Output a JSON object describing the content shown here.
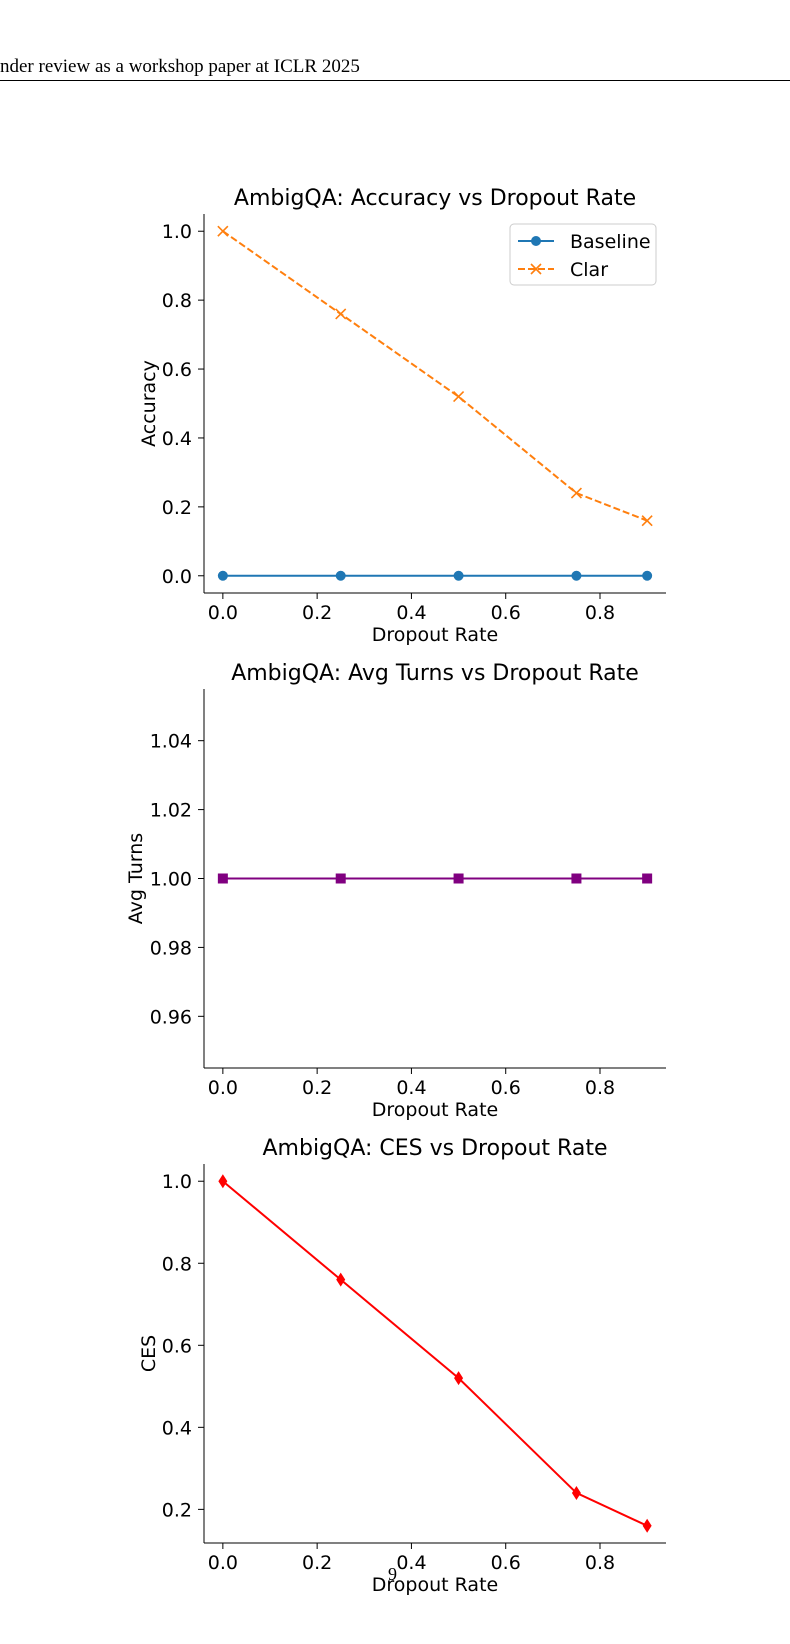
{
  "header": {
    "text": "nder review as a workshop paper at ICLR 2025"
  },
  "page_number": "9",
  "chart_data": [
    {
      "type": "line",
      "title": "AmbigQA: Accuracy vs Dropout Rate",
      "xlabel": "Dropout Rate",
      "ylabel": "Accuracy",
      "xlim": [
        -0.04,
        0.94
      ],
      "ylim": [
        -0.05,
        1.05
      ],
      "xticks": [
        0.0,
        0.2,
        0.4,
        0.6,
        0.8
      ],
      "xtick_labels": [
        "0.0",
        "0.2",
        "0.4",
        "0.6",
        "0.8"
      ],
      "yticks": [
        0.0,
        0.2,
        0.4,
        0.6,
        0.8,
        1.0
      ],
      "ytick_labels": [
        "0.0",
        "0.2",
        "0.4",
        "0.6",
        "0.8",
        "1.0"
      ],
      "x": [
        0.0,
        0.25,
        0.5,
        0.75,
        0.9
      ],
      "series": [
        {
          "name": "Baseline",
          "values": [
            0.0,
            0.0,
            0.0,
            0.0,
            0.0
          ],
          "color": "#1f77b4",
          "marker": "circle",
          "dash": "solid"
        },
        {
          "name": "Clar",
          "values": [
            1.0,
            0.76,
            0.52,
            0.24,
            0.16
          ],
          "color": "#ff7f0e",
          "marker": "x",
          "dash": "dashed"
        }
      ],
      "legend": "top-right",
      "grid": false
    },
    {
      "type": "line",
      "title": "AmbigQA: Avg Turns vs Dropout Rate",
      "xlabel": "Dropout Rate",
      "ylabel": "Avg Turns",
      "xlim": [
        -0.04,
        0.94
      ],
      "ylim": [
        0.945,
        1.055
      ],
      "xticks": [
        0.0,
        0.2,
        0.4,
        0.6,
        0.8
      ],
      "xtick_labels": [
        "0.0",
        "0.2",
        "0.4",
        "0.6",
        "0.8"
      ],
      "yticks": [
        0.96,
        0.98,
        1.0,
        1.02,
        1.04
      ],
      "ytick_labels": [
        "0.96",
        "0.98",
        "1.00",
        "1.02",
        "1.04"
      ],
      "x": [
        0.0,
        0.25,
        0.5,
        0.75,
        0.9
      ],
      "series": [
        {
          "values": [
            1.0,
            1.0,
            1.0,
            1.0,
            1.0
          ],
          "color": "#800080",
          "marker": "square",
          "dash": "solid"
        }
      ],
      "legend": "none",
      "grid": false
    },
    {
      "type": "line",
      "title": "AmbigQA: CES vs Dropout Rate",
      "xlabel": "Dropout Rate",
      "ylabel": "CES",
      "xlim": [
        -0.04,
        0.94
      ],
      "ylim": [
        0.118,
        1.042
      ],
      "xticks": [
        0.0,
        0.2,
        0.4,
        0.6,
        0.8
      ],
      "xtick_labels": [
        "0.0",
        "0.2",
        "0.4",
        "0.6",
        "0.8"
      ],
      "yticks": [
        0.2,
        0.4,
        0.6,
        0.8,
        1.0
      ],
      "ytick_labels": [
        "0.2",
        "0.4",
        "0.6",
        "0.8",
        "1.0"
      ],
      "x": [
        0.0,
        0.25,
        0.5,
        0.75,
        0.9
      ],
      "series": [
        {
          "values": [
            1.0,
            0.76,
            0.52,
            0.24,
            0.16
          ],
          "color": "#ff0000",
          "marker": "diamond",
          "dash": "solid"
        }
      ],
      "legend": "none",
      "grid": false
    }
  ]
}
